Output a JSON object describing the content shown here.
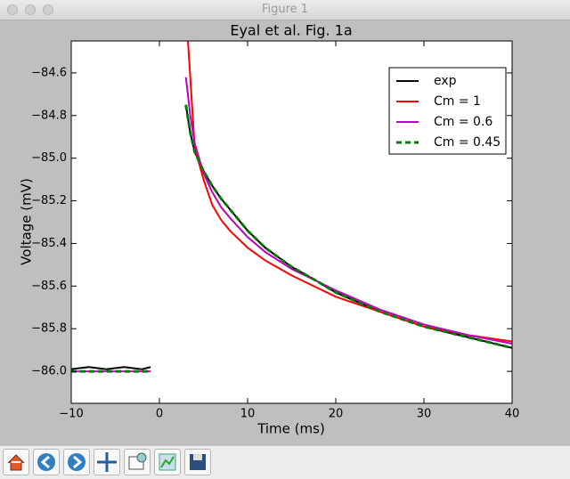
{
  "window": {
    "title": "Figure 1"
  },
  "chart_data": {
    "type": "line",
    "title": "Eyal et al. Fig. 1a",
    "x_label": "Time (ms)",
    "y_label": "Voltage (mV)",
    "x": [
      -10,
      -8,
      -6,
      -4,
      -2,
      -1,
      0,
      3,
      3.5,
      4,
      5,
      6,
      7,
      8,
      10,
      12,
      15,
      18,
      20,
      25,
      30,
      35,
      40
    ],
    "series": [
      {
        "name": "exp",
        "color": "#000000",
        "values": [
          -85.99,
          -85.98,
          -85.99,
          -85.98,
          -85.99,
          -85.98,
          null,
          -84.75,
          -84.88,
          -84.97,
          -85.06,
          -85.13,
          -85.19,
          -85.24,
          -85.34,
          -85.42,
          -85.51,
          -85.58,
          -85.63,
          -85.72,
          -85.79,
          -85.84,
          -85.89
        ]
      },
      {
        "name": "Cm = 1",
        "color": "#ff0000",
        "values": [
          null,
          null,
          null,
          null,
          null,
          null,
          null,
          -84.3,
          -84.62,
          -84.95,
          -85.1,
          -85.22,
          -85.29,
          -85.34,
          -85.42,
          -85.48,
          -85.55,
          -85.61,
          -85.65,
          -85.72,
          -85.79,
          -85.83,
          -85.86
        ]
      },
      {
        "name": "Cm = 0.6",
        "color": "#bf00bf",
        "values": [
          -86.0,
          -86.0,
          -86.0,
          -86.0,
          -86.0,
          -86.0,
          null,
          -84.62,
          -84.8,
          -84.93,
          -85.07,
          -85.16,
          -85.23,
          -85.28,
          -85.37,
          -85.44,
          -85.52,
          -85.58,
          -85.62,
          -85.71,
          -85.78,
          -85.83,
          -85.87
        ]
      },
      {
        "name": "Cm = 0.45",
        "color": "#008000",
        "dashed": true,
        "values": [
          -86.0,
          -86.0,
          -86.0,
          -86.0,
          -86.0,
          -86.0,
          null,
          -84.75,
          -84.88,
          -84.97,
          -85.06,
          -85.13,
          -85.19,
          -85.24,
          -85.34,
          -85.42,
          -85.51,
          -85.58,
          -85.63,
          -85.72,
          -85.79,
          -85.84,
          -85.89
        ]
      }
    ],
    "xlim": [
      -10,
      40
    ],
    "ylim": [
      -86.15,
      -84.45
    ],
    "xticks": [
      {
        "value": -10,
        "label": "−10"
      },
      0,
      10,
      20,
      30,
      40
    ],
    "yticks": [
      {
        "value": -86.0,
        "label": "−86.0"
      },
      {
        "value": -85.8,
        "label": "−85.8"
      },
      {
        "value": -85.6,
        "label": "−85.6"
      },
      {
        "value": -85.4,
        "label": "−85.4"
      },
      {
        "value": -85.2,
        "label": "−85.2"
      },
      {
        "value": -85.0,
        "label": "−85.0"
      },
      {
        "value": -84.8,
        "label": "−84.8"
      },
      {
        "value": -84.6,
        "label": "−84.6"
      }
    ],
    "grid": false,
    "legend": "upper right"
  }
}
